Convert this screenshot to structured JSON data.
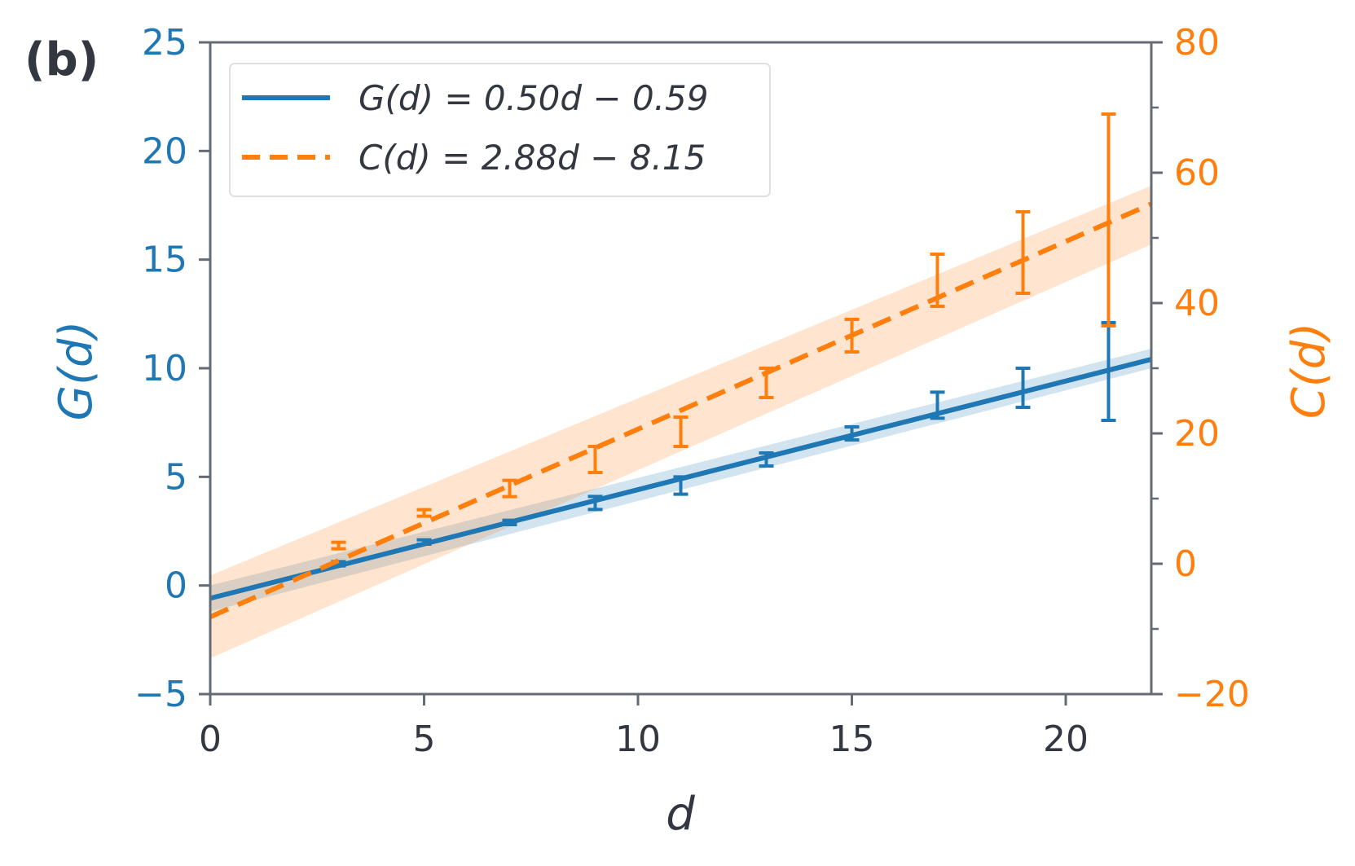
{
  "panel_label": "(b)",
  "colors": {
    "G": "#1f77b4",
    "C": "#ff7f0e",
    "axis": "#636b75",
    "text": "#333740"
  },
  "chart_data": {
    "type": "line",
    "title": "",
    "xlabel": "d",
    "ylabel_left": "G(d)",
    "ylabel_right": "C(d)",
    "xlim": [
      0,
      22
    ],
    "ylim_left": [
      -5,
      25
    ],
    "ylim_right": [
      -20,
      80
    ],
    "x_ticks": [
      0,
      5,
      10,
      15,
      20
    ],
    "x_tick_labels": [
      "0",
      "5",
      "10",
      "15",
      "20"
    ],
    "y_left_ticks": [
      -5,
      0,
      5,
      10,
      15,
      20,
      25
    ],
    "y_left_tick_labels": [
      "−5",
      "0",
      "5",
      "10",
      "15",
      "20",
      "25"
    ],
    "y_right_ticks": [
      -20,
      0,
      20,
      40,
      60,
      80
    ],
    "y_right_tick_labels": [
      "−20",
      "0",
      "20",
      "40",
      "60",
      "80"
    ],
    "y_right_minor_ticks": [
      -10,
      10,
      30,
      50,
      70
    ],
    "legend_position": "top-left",
    "series": [
      {
        "name": "G(d) = 0.50d − 0.59",
        "legend_label": "G(d) = 0.50d − 0.59",
        "axis": "left",
        "style": "solid",
        "fit": {
          "slope": 0.5,
          "intercept": -0.59
        },
        "band": {
          "x": [
            0,
            22
          ],
          "lower": [
            -1.2,
            10.0
          ],
          "upper": [
            0.0,
            10.9
          ]
        },
        "x": [
          3,
          5,
          7,
          9,
          11,
          13,
          15,
          17,
          19,
          21
        ],
        "y": [
          1.0,
          2.0,
          2.9,
          3.8,
          4.6,
          5.8,
          7.0,
          8.2,
          9.1,
          9.9
        ],
        "err_low": [
          0.9,
          1.9,
          2.8,
          3.5,
          4.2,
          5.5,
          6.7,
          7.7,
          8.2,
          7.6
        ],
        "err_high": [
          1.1,
          2.1,
          3.0,
          4.1,
          5.0,
          6.1,
          7.3,
          8.9,
          10.0,
          12.1
        ]
      },
      {
        "name": "C(d) = 2.88d − 8.15",
        "legend_label": "C(d) = 2.88d − 8.15",
        "axis": "right",
        "style": "dashed",
        "fit": {
          "slope": 2.88,
          "intercept": -8.15
        },
        "band": {
          "x": [
            0,
            22
          ],
          "lower": [
            -14.5,
            49.0
          ],
          "upper": [
            -1.8,
            58.0
          ]
        },
        "x": [
          3,
          5,
          7,
          9,
          11,
          13,
          15,
          17,
          19,
          21
        ],
        "y": [
          3.0,
          8.0,
          11.5,
          16.0,
          20.0,
          27.5,
          35.0,
          44.0,
          48.0,
          52.0
        ],
        "err_low": [
          2.3,
          7.3,
          10.3,
          14.0,
          18.0,
          25.5,
          32.5,
          39.5,
          41.5,
          36.5
        ],
        "err_high": [
          3.3,
          8.3,
          12.8,
          18.0,
          22.5,
          30.0,
          37.5,
          47.5,
          54.0,
          69.0
        ]
      }
    ]
  }
}
